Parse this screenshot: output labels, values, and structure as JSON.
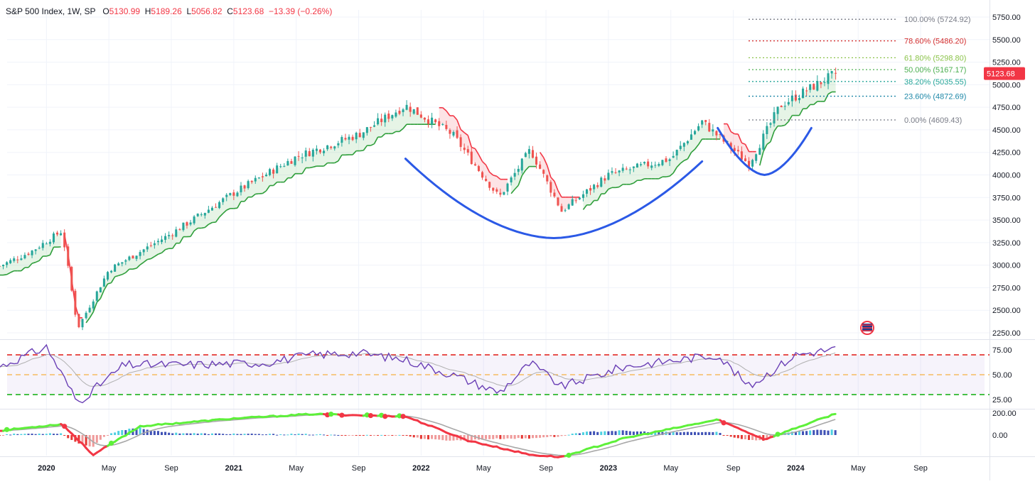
{
  "header": {
    "symbol": "S&P 500 Index, 1W, SP",
    "open_label": "O",
    "open": "5130.99",
    "high_label": "H",
    "high": "5189.26",
    "low_label": "L",
    "low": "5056.82",
    "close_label": "C",
    "close": "5123.68",
    "change": "−13.39 (−0.26%)"
  },
  "price_badge": "5123.68",
  "colors": {
    "up": "#26a69a",
    "down": "#ef5350",
    "stop_up": "#2e9e3a",
    "stop_down": "#f23645",
    "annot": "#2b59e6",
    "rsi": "#6a3fb5",
    "rsi_ma": "#b0b0b0",
    "grid": "#f0f3fa"
  },
  "chart_data": [
    {
      "type": "candlestick",
      "title": "S&P 500 Index, 1W, SP",
      "x_ticks": [
        "2020",
        "May",
        "Sep",
        "2021",
        "May",
        "Sep",
        "2022",
        "May",
        "Sep",
        "2023",
        "May",
        "Sep",
        "2024",
        "May",
        "Sep"
      ],
      "x_tick_dates": [
        "2020-01",
        "2020-05",
        "2020-09",
        "2021-01",
        "2021-05",
        "2021-09",
        "2022-01",
        "2022-05",
        "2022-09",
        "2023-01",
        "2023-05",
        "2023-09",
        "2024-01",
        "2024-05",
        "2024-09"
      ],
      "y_ticks": [
        "5750.00",
        "5500.00",
        "5250.00",
        "5000.00",
        "4750.00",
        "4500.00",
        "4250.00",
        "4000.00",
        "3750.00",
        "3500.00",
        "3250.00",
        "3000.00",
        "2750.00",
        "2500.00",
        "2250.00"
      ],
      "y_tick_values": [
        5750,
        5500,
        5250,
        5000,
        4750,
        4500,
        4250,
        4000,
        3750,
        3500,
        3250,
        3000,
        2750,
        2500,
        2250
      ],
      "close_path": [
        [
          "2019-10",
          2990
        ],
        [
          "2019-12",
          3150
        ],
        [
          "2020-02",
          3380
        ],
        [
          "2020-03",
          2300
        ],
        [
          "2020-05",
          2950
        ],
        [
          "2020-09",
          3350
        ],
        [
          "2021-01",
          3800
        ],
        [
          "2021-05",
          4200
        ],
        [
          "2021-09",
          4450
        ],
        [
          "2021-12",
          4770
        ],
        [
          "2022-03",
          4450
        ],
        [
          "2022-06",
          3750
        ],
        [
          "2022-08",
          4280
        ],
        [
          "2022-10",
          3600
        ],
        [
          "2023-01",
          4000
        ],
        [
          "2023-05",
          4180
        ],
        [
          "2023-07",
          4590
        ],
        [
          "2023-10",
          4120
        ],
        [
          "2023-12",
          4770
        ],
        [
          "2024-03",
          5123
        ]
      ],
      "last_candle": {
        "open": 5130.99,
        "high": 5189.26,
        "low": 5056.82,
        "close": 5123.68
      },
      "fib_levels": [
        {
          "label": "100.00% (5724.92)",
          "value": 5724.92,
          "color": "#787b86"
        },
        {
          "label": "78.60% (5486.20)",
          "value": 5486.2,
          "color": "#d32f2f"
        },
        {
          "label": "61.80% (5298.80)",
          "value": 5298.8,
          "color": "#8bc34a"
        },
        {
          "label": "50.00% (5167.17)",
          "value": 5167.17,
          "color": "#4caf50"
        },
        {
          "label": "38.20% (5035.55)",
          "value": 5035.55,
          "color": "#26a69a"
        },
        {
          "label": "23.60% (4872.69)",
          "value": 4872.69,
          "color": "#1e88a8"
        },
        {
          "label": "0.00% (4609.43)",
          "value": 4609.43,
          "color": "#787b86"
        }
      ]
    },
    {
      "type": "line",
      "series_kind": "oscillator (RSI)",
      "y_ticks": [
        "75.00",
        "50.00",
        "25.00"
      ],
      "y_tick_values": [
        75,
        50,
        25
      ],
      "levels": {
        "upper": 70,
        "middle": 50,
        "lower": 30
      },
      "path": [
        [
          "2019-10",
          58
        ],
        [
          "2020-01",
          78
        ],
        [
          "2020-03",
          22
        ],
        [
          "2020-06",
          60
        ],
        [
          "2020-10",
          60
        ],
        [
          "2021-03",
          62
        ],
        [
          "2021-06",
          70
        ],
        [
          "2021-09",
          72
        ],
        [
          "2021-12",
          65
        ],
        [
          "2022-03",
          50
        ],
        [
          "2022-06",
          32
        ],
        [
          "2022-08",
          62
        ],
        [
          "2022-10",
          38
        ],
        [
          "2023-02",
          58
        ],
        [
          "2023-08",
          70
        ],
        [
          "2023-10",
          38
        ],
        [
          "2024-01",
          70
        ],
        [
          "2024-03",
          76
        ]
      ]
    },
    {
      "type": "bar",
      "series_kind": "oscillator (histogram with signal lines)",
      "y_ticks": [
        "200.00",
        "0.00"
      ],
      "y_tick_values": [
        200,
        0
      ],
      "macd_path": [
        [
          "2019-10",
          40
        ],
        [
          "2020-02",
          100
        ],
        [
          "2020-04",
          -180
        ],
        [
          "2020-07",
          80
        ],
        [
          "2021-01",
          150
        ],
        [
          "2021-06",
          190
        ],
        [
          "2021-12",
          170
        ],
        [
          "2022-04",
          -50
        ],
        [
          "2022-08",
          -180
        ],
        [
          "2022-10",
          -200
        ],
        [
          "2023-02",
          -30
        ],
        [
          "2023-08",
          140
        ],
        [
          "2023-11",
          -40
        ],
        [
          "2024-03",
          195
        ]
      ]
    }
  ]
}
